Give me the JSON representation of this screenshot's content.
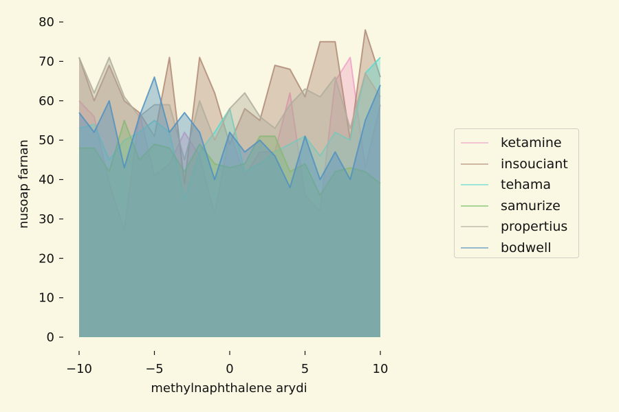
{
  "chart_data": {
    "type": "area",
    "title": "",
    "xlabel": "methylnaphthalene arydi",
    "ylabel": "nusoap farnan",
    "xlim": [
      -10,
      10
    ],
    "ylim": [
      0,
      80
    ],
    "xticks": [
      -10,
      -5,
      0,
      5,
      10
    ],
    "xtick_labels": [
      "−10",
      "−5",
      "0",
      "5",
      "10"
    ],
    "yticks": [
      0,
      10,
      20,
      30,
      40,
      50,
      60,
      70,
      80
    ],
    "grid": false,
    "legend_position": "right",
    "x": [
      -10,
      -9,
      -8,
      -7,
      -6,
      -5,
      -4,
      -3,
      -2,
      -1,
      0,
      1,
      2,
      3,
      4,
      5,
      6,
      7,
      8,
      9,
      10
    ],
    "series": [
      {
        "name": "ketamine",
        "color": "#f0a0c8",
        "values": [
          60,
          56,
          39,
          27,
          57,
          41,
          44,
          52,
          46,
          31,
          52,
          41,
          47,
          47,
          62,
          36,
          32,
          65,
          71,
          43,
          59
        ]
      },
      {
        "name": "insouciant",
        "color": "#b08a78",
        "values": [
          71,
          60,
          69,
          60,
          57,
          51,
          71,
          39,
          71,
          62,
          49,
          58,
          55,
          69,
          68,
          61,
          75,
          75,
          50,
          78,
          66
        ]
      },
      {
        "name": "tehama",
        "color": "#5ad8d0",
        "values": [
          53,
          54,
          45,
          50,
          52,
          55,
          52,
          35,
          47,
          52,
          58,
          42,
          44,
          47,
          49,
          51,
          46,
          52,
          50,
          67,
          71
        ]
      },
      {
        "name": "samurize",
        "color": "#70c060",
        "values": [
          48,
          48,
          42,
          55,
          45,
          49,
          48,
          42,
          49,
          44,
          43,
          44,
          51,
          51,
          42,
          44,
          36,
          42,
          43,
          42,
          39
        ]
      },
      {
        "name": "propertius",
        "color": "#b0ad9c",
        "values": [
          71,
          62,
          71,
          61,
          56,
          59,
          59,
          45,
          60,
          50,
          58,
          62,
          56,
          53,
          59,
          63,
          61,
          66,
          53,
          67,
          61
        ]
      },
      {
        "name": "bodwell",
        "color": "#5090c0",
        "values": [
          57,
          52,
          60,
          43,
          56,
          66,
          52,
          57,
          52,
          40,
          52,
          47,
          50,
          46,
          38,
          51,
          40,
          47,
          40,
          55,
          64
        ]
      }
    ]
  }
}
